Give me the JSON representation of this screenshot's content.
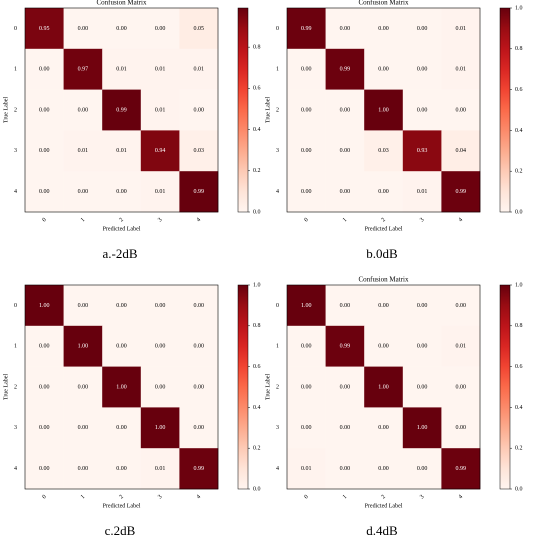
{
  "chart_data": [
    {
      "type": "heatmap",
      "title": "Confusion Matrix",
      "caption": "a.-2dB",
      "xlabel": "Predicted Label",
      "ylabel": "True Label",
      "x": [
        "0",
        "1",
        "2",
        "3",
        "4"
      ],
      "y": [
        "0",
        "1",
        "2",
        "3",
        "4"
      ],
      "values": [
        [
          0.95,
          0,
          0,
          0,
          0.05
        ],
        [
          0,
          0.97,
          0.01,
          0.01,
          0.01
        ],
        [
          0,
          0,
          0.99,
          0.01,
          0
        ],
        [
          0,
          0.01,
          0.01,
          0.94,
          0.03
        ],
        [
          0,
          0,
          0,
          0.01,
          0.99
        ]
      ],
      "value_labels": [
        [
          "0.95",
          "0.00",
          "0.00",
          "0.00",
          "0.05"
        ],
        [
          "0.00",
          "0.97",
          "0.01",
          "0.01",
          "0.01"
        ],
        [
          "0.00",
          "0.00",
          "0.99",
          "0.01",
          "0.00"
        ],
        [
          "0.00",
          "0.01",
          "0.01",
          "0.94",
          "0.03"
        ],
        [
          "0.00",
          "0.00",
          "0.00",
          "0.01",
          "0.99"
        ]
      ],
      "colormap": "Reds",
      "zlim": [
        0,
        0.99
      ],
      "zticks": [
        {
          "value": 0,
          "label": "0.0"
        },
        {
          "value": 0.2,
          "label": "0.2"
        },
        {
          "value": 0.4,
          "label": "0.4"
        },
        {
          "value": 0.6,
          "label": "0.6"
        },
        {
          "value": 0.8,
          "label": "0.8"
        }
      ]
    },
    {
      "type": "heatmap",
      "title": "Confusion Matrix",
      "caption": "b.0dB",
      "xlabel": "Predicted Label",
      "ylabel": "True Label",
      "x": [
        "0",
        "1",
        "2",
        "3",
        "4"
      ],
      "y": [
        "0",
        "1",
        "2",
        "3",
        "4"
      ],
      "values": [
        [
          0.99,
          0,
          0,
          0,
          0.01
        ],
        [
          0,
          0.99,
          0,
          0,
          0.01
        ],
        [
          0,
          0,
          1,
          0,
          0
        ],
        [
          0,
          0,
          0.03,
          0.93,
          0.04
        ],
        [
          0,
          0,
          0,
          0.01,
          0.99
        ]
      ],
      "value_labels": [
        [
          "0.99",
          "0.00",
          "0.00",
          "0.00",
          "0.01"
        ],
        [
          "0.00",
          "0.99",
          "0.00",
          "0.00",
          "0.01"
        ],
        [
          "0.00",
          "0.00",
          "1.00",
          "0.00",
          "0.00"
        ],
        [
          "0.00",
          "0.00",
          "0.03",
          "0.93",
          "0.04"
        ],
        [
          "0.00",
          "0.00",
          "0.00",
          "0.01",
          "0.99"
        ]
      ],
      "colormap": "Reds",
      "zlim": [
        0,
        1
      ],
      "zticks": [
        {
          "value": 0,
          "label": "0.0"
        },
        {
          "value": 0.2,
          "label": "0.2"
        },
        {
          "value": 0.4,
          "label": "0.4"
        },
        {
          "value": 0.6,
          "label": "0.6"
        },
        {
          "value": 0.8,
          "label": "0.8"
        },
        {
          "value": 1,
          "label": "1.0"
        }
      ]
    },
    {
      "type": "heatmap",
      "caption": "c.2dB",
      "xlabel": "Predicted Label",
      "ylabel": "True Label",
      "x": [
        "0",
        "1",
        "2",
        "3",
        "4"
      ],
      "y": [
        "0",
        "1",
        "2",
        "3",
        "4"
      ],
      "values": [
        [
          1,
          0,
          0,
          0,
          0
        ],
        [
          0,
          1,
          0,
          0,
          0
        ],
        [
          0,
          0,
          1,
          0,
          0
        ],
        [
          0,
          0,
          0,
          1,
          0
        ],
        [
          0,
          0,
          0,
          0.01,
          0.99
        ]
      ],
      "value_labels": [
        [
          "1.00",
          "0.00",
          "0.00",
          "0.00",
          "0.00"
        ],
        [
          "0.00",
          "1.00",
          "0.00",
          "0.00",
          "0.00"
        ],
        [
          "0.00",
          "0.00",
          "1.00",
          "0.00",
          "0.00"
        ],
        [
          "0.00",
          "0.00",
          "0.00",
          "1.00",
          "0.00"
        ],
        [
          "0.00",
          "0.00",
          "0.00",
          "0.01",
          "0.99"
        ]
      ],
      "colormap": "Reds",
      "zlim": [
        0,
        1
      ],
      "zticks": [
        {
          "value": 0,
          "label": "0.0"
        },
        {
          "value": 0.2,
          "label": "0.2"
        },
        {
          "value": 0.4,
          "label": "0.4"
        },
        {
          "value": 0.6,
          "label": "0.6"
        },
        {
          "value": 0.8,
          "label": "0.8"
        },
        {
          "value": 1,
          "label": "1.0"
        }
      ]
    },
    {
      "type": "heatmap",
      "title": "Confusion Matrix",
      "caption": "d.4dB",
      "xlabel": "Predicted Label",
      "ylabel": "True Label",
      "x": [
        "0",
        "1",
        "2",
        "3",
        "4"
      ],
      "y": [
        "0",
        "1",
        "2",
        "3",
        "4"
      ],
      "values": [
        [
          1,
          0,
          0,
          0,
          0
        ],
        [
          0,
          0.99,
          0,
          0,
          0.01
        ],
        [
          0,
          0,
          1,
          0,
          0
        ],
        [
          0,
          0,
          0,
          1,
          0
        ],
        [
          0.01,
          0,
          0,
          0,
          0.99
        ]
      ],
      "value_labels": [
        [
          "1.00",
          "0.00",
          "0.00",
          "0.00",
          "0.00"
        ],
        [
          "0.00",
          "0.99",
          "0.00",
          "0.00",
          "0.01"
        ],
        [
          "0.00",
          "0.00",
          "1.00",
          "0.00",
          "0.00"
        ],
        [
          "0.00",
          "0.00",
          "0.00",
          "1.00",
          "0.00"
        ],
        [
          "0.01",
          "0.00",
          "0.00",
          "0.00",
          "0.99"
        ]
      ],
      "colormap": "Reds",
      "zlim": [
        0,
        1
      ],
      "zticks": [
        {
          "value": 0,
          "label": "0.0"
        },
        {
          "value": 0.2,
          "label": "0.2"
        },
        {
          "value": 0.4,
          "label": "0.4"
        },
        {
          "value": 0.6,
          "label": "0.6"
        },
        {
          "value": 0.8,
          "label": "0.8"
        },
        {
          "value": 1,
          "label": "1.0"
        }
      ]
    }
  ]
}
